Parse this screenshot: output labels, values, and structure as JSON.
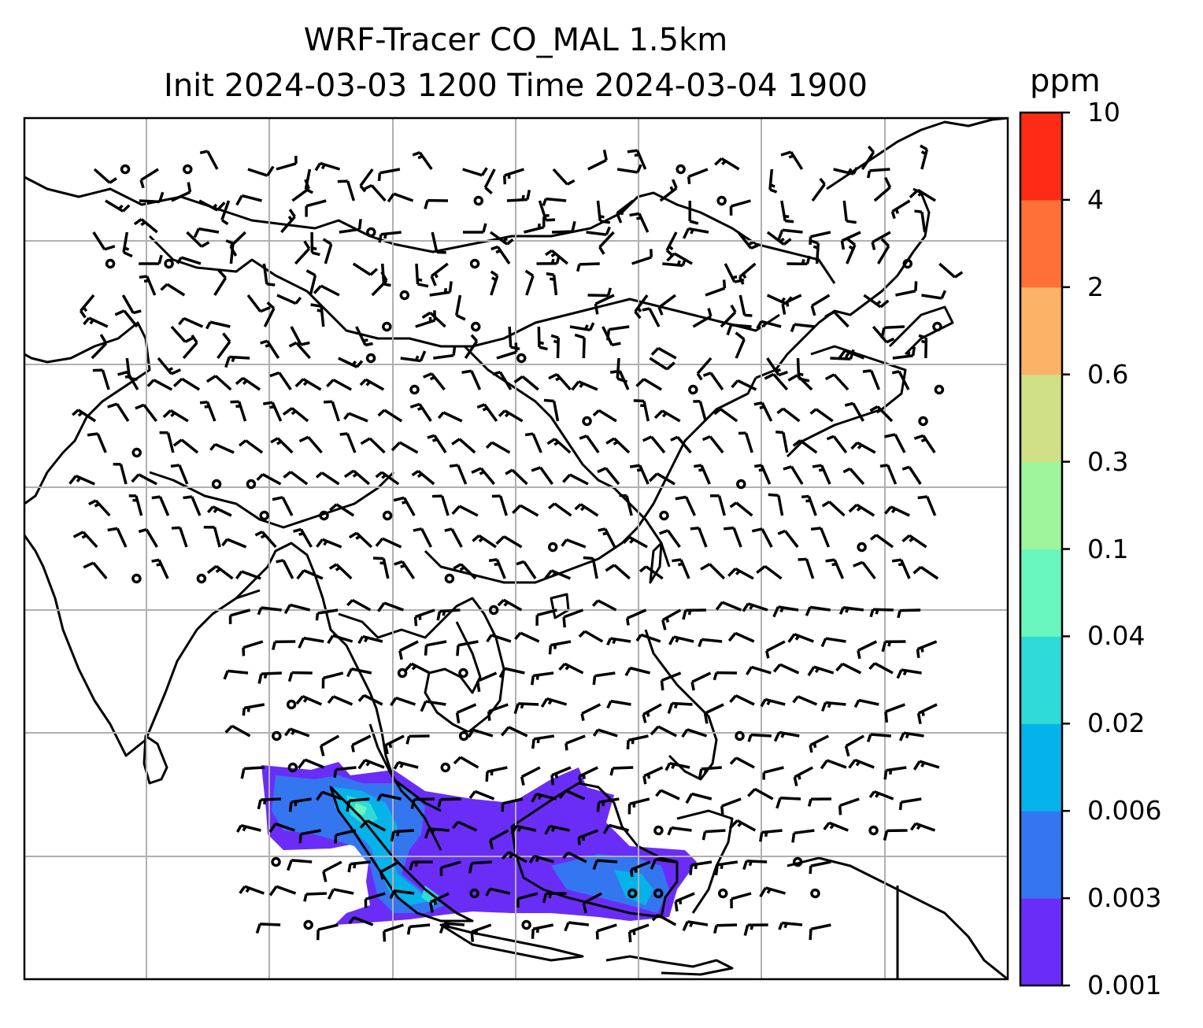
{
  "title": {
    "line1": "WRF-Tracer CO_MAL 1.5km",
    "line2": "Init 2024-03-03 1200 Time 2024-03-04 1900"
  },
  "colorbar": {
    "unit": "ppm",
    "levels": [
      "0.001",
      "0.003",
      "0.006",
      "0.02",
      "0.04",
      "0.1",
      "0.3",
      "0.6",
      "2",
      "4",
      "10"
    ],
    "colors": [
      "#6a2df8",
      "#3476f0",
      "#06b2ea",
      "#2edbd6",
      "#69f7bf",
      "#9ef59b",
      "#cfe087",
      "#fbb367",
      "#fe7038",
      "#fe2b17"
    ]
  },
  "map": {
    "coastline_color": "#000000",
    "gridline_color": "#b0b0b0",
    "wind_barb_color": "#000000"
  }
}
